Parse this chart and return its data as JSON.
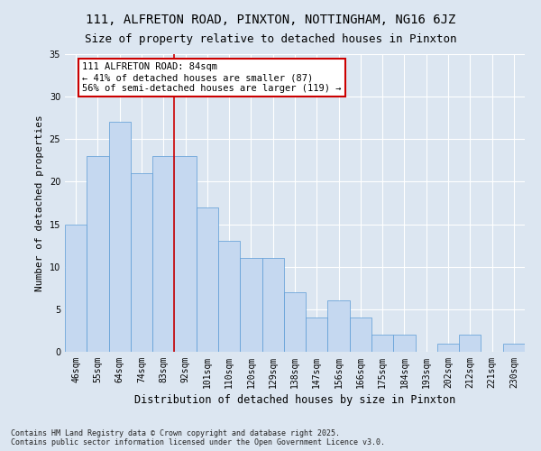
{
  "title": "111, ALFRETON ROAD, PINXTON, NOTTINGHAM, NG16 6JZ",
  "subtitle": "Size of property relative to detached houses in Pinxton",
  "xlabel": "Distribution of detached houses by size in Pinxton",
  "ylabel": "Number of detached properties",
  "bar_color": "#c5d8f0",
  "bar_edge_color": "#5b9bd5",
  "background_color": "#dce6f1",
  "grid_color": "#ffffff",
  "categories": [
    "46sqm",
    "55sqm",
    "64sqm",
    "74sqm",
    "83sqm",
    "92sqm",
    "101sqm",
    "110sqm",
    "120sqm",
    "129sqm",
    "138sqm",
    "147sqm",
    "156sqm",
    "166sqm",
    "175sqm",
    "184sqm",
    "193sqm",
    "202sqm",
    "212sqm",
    "221sqm",
    "230sqm"
  ],
  "values": [
    15,
    23,
    27,
    21,
    23,
    23,
    17,
    13,
    11,
    11,
    7,
    4,
    6,
    4,
    2,
    2,
    0,
    1,
    2,
    0,
    1
  ],
  "ylim": [
    0,
    35
  ],
  "yticks": [
    0,
    5,
    10,
    15,
    20,
    25,
    30,
    35
  ],
  "property_line_x": 4.5,
  "annotation_text": "111 ALFRETON ROAD: 84sqm\n← 41% of detached houses are smaller (87)\n56% of semi-detached houses are larger (119) →",
  "annotation_box_color": "#ffffff",
  "annotation_border_color": "#cc0000",
  "line_color": "#cc0000",
  "footer": "Contains HM Land Registry data © Crown copyright and database right 2025.\nContains public sector information licensed under the Open Government Licence v3.0.",
  "title_fontsize": 10,
  "subtitle_fontsize": 9,
  "xlabel_fontsize": 8.5,
  "ylabel_fontsize": 8,
  "tick_fontsize": 7,
  "annotation_fontsize": 7.5,
  "footer_fontsize": 6
}
